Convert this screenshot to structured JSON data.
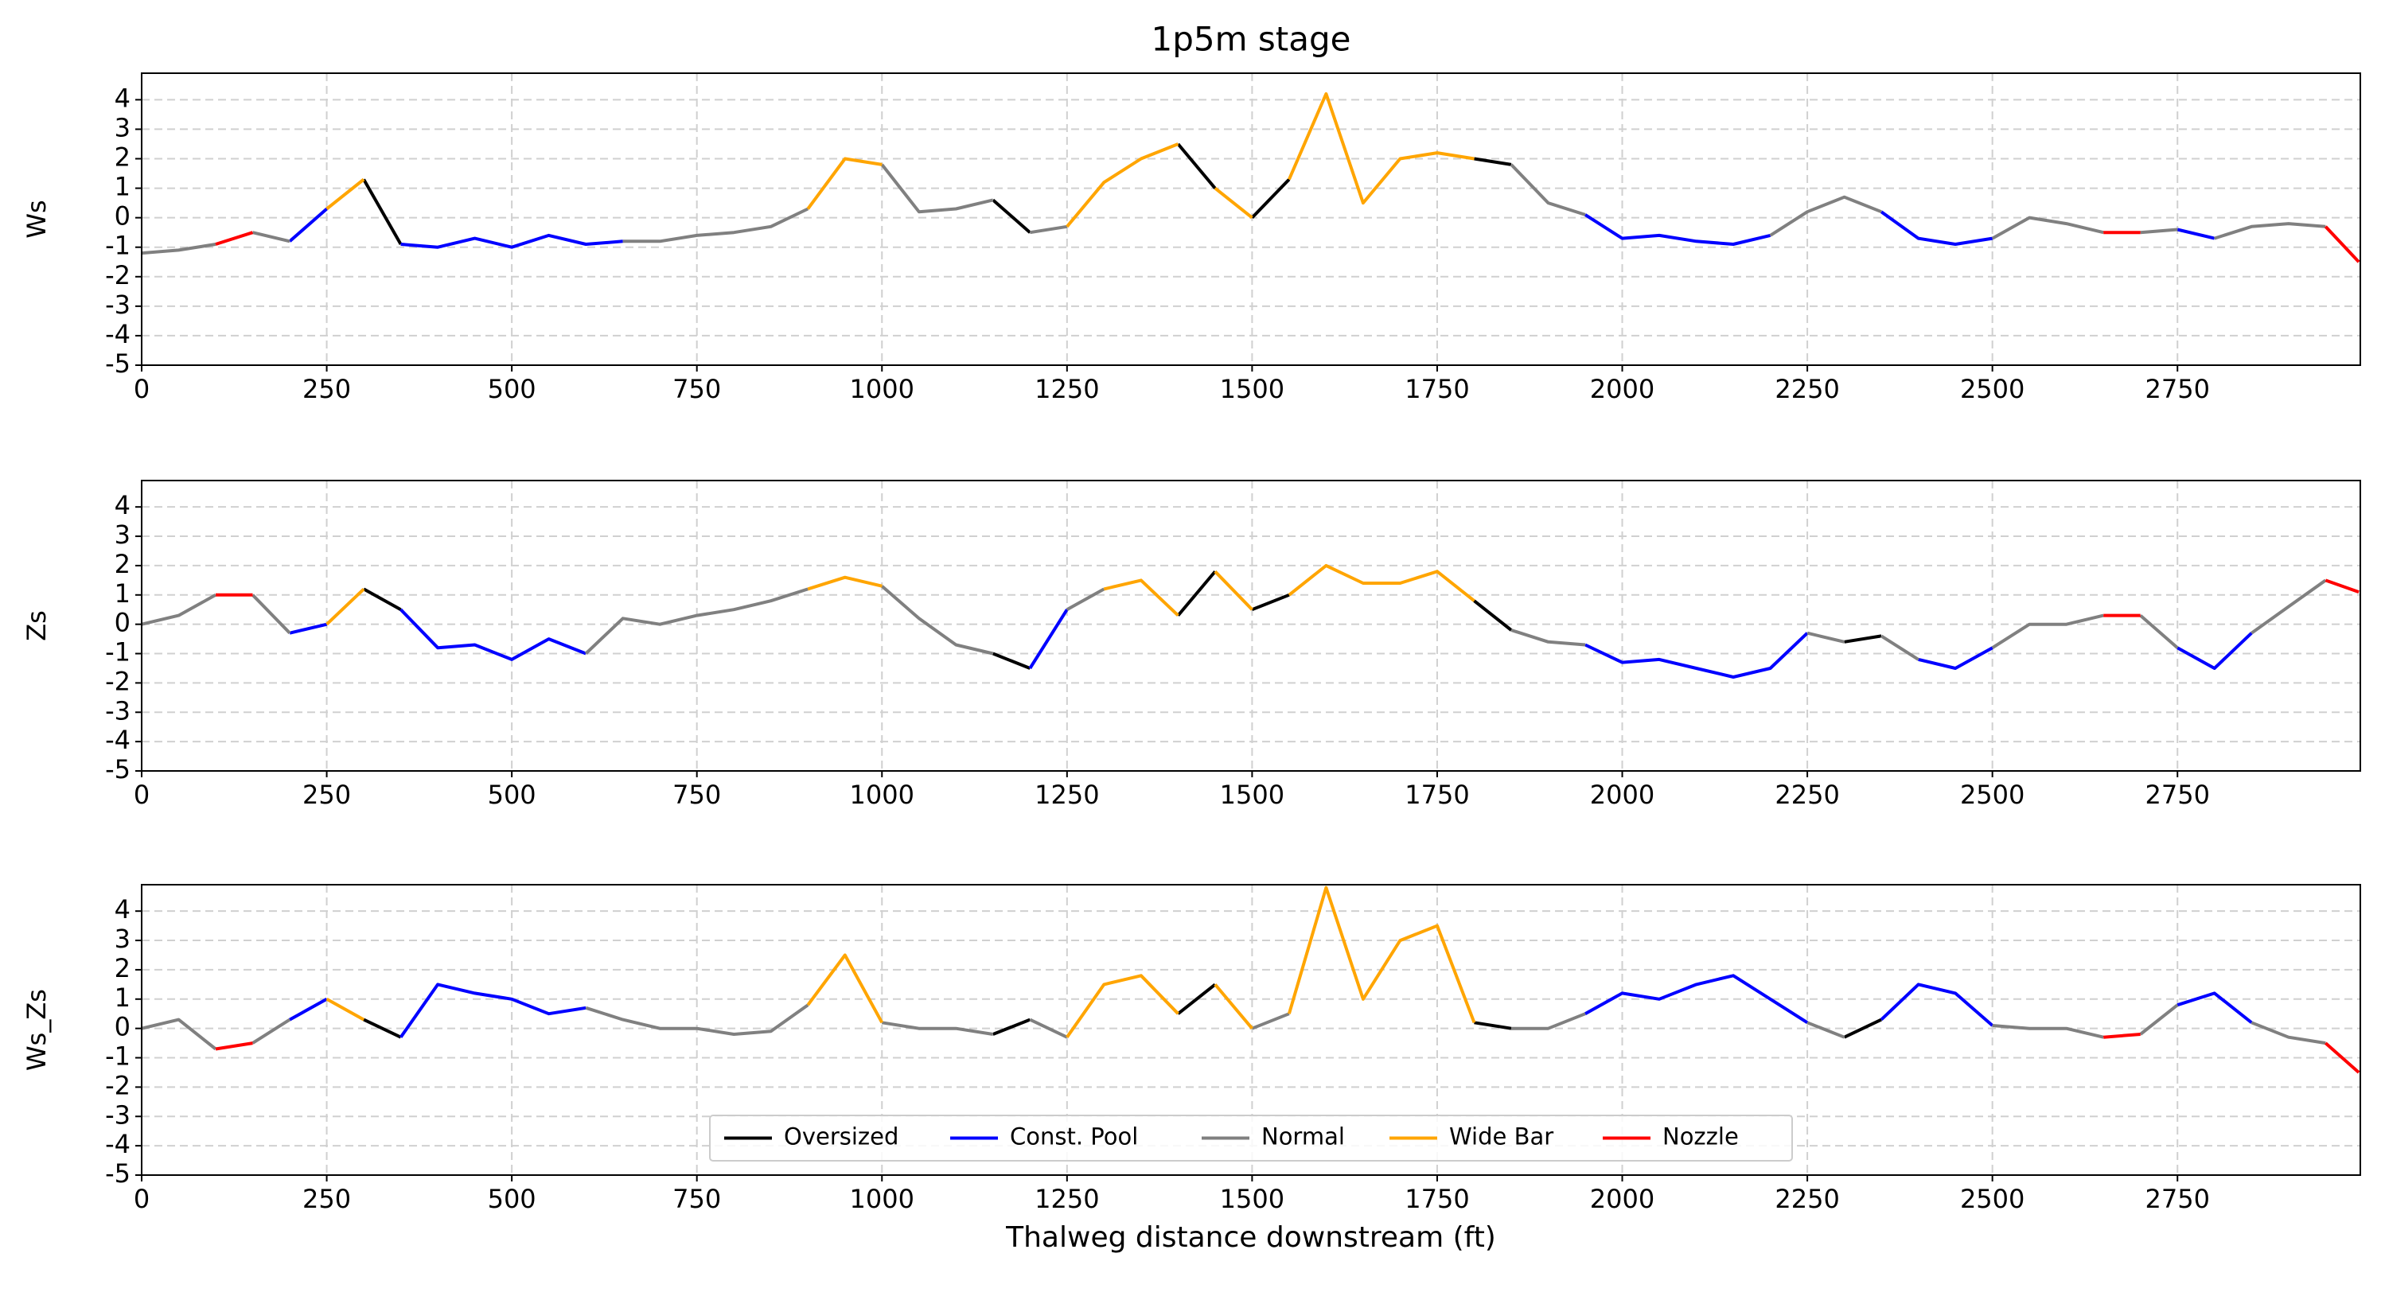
{
  "chart_data": [
    {
      "type": "line",
      "title": "1p5m stage",
      "y_label": "Ws",
      "xlim": [
        0,
        2997
      ],
      "ylim": [
        -5,
        4.9
      ],
      "xticks": [
        0,
        250,
        500,
        750,
        1000,
        1250,
        1500,
        1750,
        2000,
        2250,
        2500,
        2750
      ],
      "yticks": [
        -5,
        -4,
        -3,
        -2,
        -1,
        0,
        1,
        2,
        3,
        4
      ],
      "grid": true,
      "series": [
        {
          "color": "#000000",
          "x": [
            300,
            350,
            null,
            1150,
            1200,
            null,
            1400,
            1450,
            null,
            1500,
            1550,
            null,
            1800,
            1850
          ],
          "values": [
            1.3,
            -0.9,
            null,
            0.6,
            -0.5,
            null,
            2.5,
            1.0,
            null,
            0.0,
            1.3,
            null,
            2.0,
            1.8
          ]
        },
        {
          "color": "#0000ff",
          "x": [
            200,
            250,
            null,
            350,
            400,
            450,
            500,
            550,
            600,
            650,
            null,
            1950,
            2000,
            2050,
            2100,
            2150,
            2200,
            null,
            2350,
            2400,
            2450,
            2500,
            null,
            2750,
            2800
          ],
          "values": [
            -0.8,
            0.3,
            null,
            -0.9,
            -1.0,
            -0.7,
            -1.0,
            -0.6,
            -0.9,
            -0.8,
            null,
            0.1,
            -0.7,
            -0.6,
            -0.8,
            -0.9,
            -0.6,
            null,
            0.2,
            -0.7,
            -0.9,
            -0.7,
            null,
            -0.4,
            -0.7
          ]
        },
        {
          "color": "#808080",
          "x": [
            0,
            50,
            100,
            null,
            150,
            200,
            null,
            650,
            700,
            750,
            800,
            850,
            900,
            null,
            1000,
            1050,
            1100,
            1150,
            null,
            1200,
            1250,
            null,
            1850,
            1900,
            1950,
            null,
            2200,
            2250,
            2300,
            2350,
            null,
            2500,
            2550,
            2600,
            2650,
            null,
            2700,
            2750,
            null,
            2800,
            2850,
            2900,
            2950
          ],
          "values": [
            -1.2,
            -1.1,
            -0.9,
            null,
            -0.5,
            -0.8,
            null,
            -0.8,
            -0.8,
            -0.6,
            -0.5,
            -0.3,
            0.3,
            null,
            1.8,
            0.2,
            0.3,
            0.6,
            null,
            -0.5,
            -0.3,
            null,
            1.8,
            0.5,
            0.1,
            null,
            -0.6,
            0.2,
            0.7,
            0.2,
            null,
            -0.7,
            0.0,
            -0.2,
            -0.5,
            null,
            -0.5,
            -0.4,
            null,
            -0.7,
            -0.3,
            -0.2,
            -0.3
          ]
        },
        {
          "color": "#ffa500",
          "x": [
            250,
            300,
            null,
            900,
            950,
            1000,
            null,
            1250,
            1300,
            1350,
            1400,
            null,
            1450,
            1500,
            null,
            1550,
            1600,
            1650,
            1700,
            1750,
            1800
          ],
          "values": [
            0.3,
            1.3,
            null,
            0.3,
            2.0,
            1.8,
            null,
            -0.3,
            1.2,
            2.0,
            2.5,
            null,
            1.0,
            0.0,
            null,
            1.3,
            4.2,
            0.5,
            2.0,
            2.2,
            2.0
          ]
        },
        {
          "color": "#ff0000",
          "x": [
            100,
            150,
            null,
            2650,
            2700,
            null,
            2950,
            2995
          ],
          "values": [
            -0.9,
            -0.5,
            null,
            -0.5,
            -0.5,
            null,
            -0.3,
            -1.5
          ]
        }
      ]
    },
    {
      "type": "line",
      "y_label": "Zs",
      "xlim": [
        0,
        2997
      ],
      "ylim": [
        -5,
        4.9
      ],
      "xticks": [
        0,
        250,
        500,
        750,
        1000,
        1250,
        1500,
        1750,
        2000,
        2250,
        2500,
        2750
      ],
      "yticks": [
        -5,
        -4,
        -3,
        -2,
        -1,
        0,
        1,
        2,
        3,
        4
      ],
      "grid": true,
      "series": [
        {
          "color": "#000000",
          "x": [
            300,
            350,
            null,
            1150,
            1200,
            null,
            1400,
            1450,
            null,
            1500,
            1550,
            null,
            1800,
            1850,
            null,
            2300,
            2350
          ],
          "values": [
            1.2,
            0.5,
            null,
            -1.0,
            -1.5,
            null,
            0.3,
            1.8,
            null,
            0.5,
            1.0,
            null,
            0.8,
            -0.2,
            null,
            -0.6,
            -0.4
          ]
        },
        {
          "color": "#0000ff",
          "x": [
            200,
            250,
            null,
            350,
            400,
            450,
            500,
            550,
            600,
            null,
            1200,
            1250,
            null,
            1950,
            2000,
            2050,
            2100,
            2150,
            2200,
            2250,
            null,
            2400,
            2450,
            2500,
            null,
            2750,
            2800,
            2850
          ],
          "values": [
            -0.3,
            0.0,
            null,
            0.5,
            -0.8,
            -0.7,
            -1.2,
            -0.5,
            -1.0,
            null,
            -1.5,
            0.5,
            null,
            -0.7,
            -1.3,
            -1.2,
            -1.5,
            -1.8,
            -1.5,
            -0.3,
            null,
            -1.2,
            -1.5,
            -0.8,
            null,
            -0.8,
            -1.5,
            -0.3
          ]
        },
        {
          "color": "#808080",
          "x": [
            0,
            50,
            100,
            null,
            150,
            200,
            null,
            600,
            650,
            700,
            750,
            800,
            850,
            900,
            null,
            1000,
            1050,
            1100,
            1150,
            null,
            1250,
            1300,
            null,
            1850,
            1900,
            1950,
            null,
            2250,
            2300,
            null,
            2350,
            2400,
            null,
            2500,
            2550,
            2600,
            2650,
            null,
            2700,
            2750,
            null,
            2850,
            2900,
            2950
          ],
          "values": [
            0.0,
            0.3,
            1.0,
            null,
            1.0,
            -0.3,
            null,
            -1.0,
            0.2,
            0.0,
            0.3,
            0.5,
            0.8,
            1.2,
            null,
            1.3,
            0.2,
            -0.7,
            -1.0,
            null,
            0.5,
            1.2,
            null,
            -0.2,
            -0.6,
            -0.7,
            null,
            -0.3,
            -0.6,
            null,
            -0.4,
            -1.2,
            null,
            -0.8,
            0.0,
            0.0,
            0.3,
            null,
            0.3,
            -0.8,
            null,
            -0.3,
            0.6,
            1.5
          ]
        },
        {
          "color": "#ffa500",
          "x": [
            250,
            300,
            null,
            900,
            950,
            1000,
            null,
            1300,
            1350,
            1400,
            null,
            1450,
            1500,
            null,
            1550,
            1600,
            1650,
            1700,
            1750,
            1800
          ],
          "values": [
            0.0,
            1.2,
            null,
            1.2,
            1.6,
            1.3,
            null,
            1.2,
            1.5,
            0.3,
            null,
            1.8,
            0.5,
            null,
            1.0,
            2.0,
            1.4,
            1.4,
            1.8,
            0.8
          ]
        },
        {
          "color": "#ff0000",
          "x": [
            100,
            150,
            null,
            2650,
            2700,
            null,
            2950,
            2995
          ],
          "values": [
            1.0,
            1.0,
            null,
            0.3,
            0.3,
            null,
            1.5,
            1.1
          ]
        }
      ]
    },
    {
      "type": "line",
      "y_label": "Ws_Zs",
      "x_label": "Thalweg distance downstream (ft)",
      "xlim": [
        0,
        2997
      ],
      "ylim": [
        -5,
        4.9
      ],
      "xticks": [
        0,
        250,
        500,
        750,
        1000,
        1250,
        1500,
        1750,
        2000,
        2250,
        2500,
        2750
      ],
      "yticks": [
        -5,
        -4,
        -3,
        -2,
        -1,
        0,
        1,
        2,
        3,
        4
      ],
      "grid": true,
      "legend": "lower center",
      "series": [
        {
          "name": "Oversized",
          "color": "#000000",
          "x": [
            300,
            350,
            null,
            1150,
            1200,
            null,
            1400,
            1450,
            null,
            1800,
            1850,
            null,
            2300,
            2350
          ],
          "values": [
            0.3,
            -0.3,
            null,
            -0.2,
            0.3,
            null,
            0.5,
            1.5,
            null,
            0.2,
            0.0,
            null,
            -0.3,
            0.3
          ]
        },
        {
          "name": "Const. Pool",
          "color": "#0000ff",
          "x": [
            200,
            250,
            null,
            350,
            400,
            450,
            500,
            550,
            600,
            null,
            1950,
            2000,
            2050,
            2100,
            2150,
            2200,
            2250,
            null,
            2350,
            2400,
            2450,
            2500,
            null,
            2750,
            2800,
            2850
          ],
          "values": [
            0.3,
            1.0,
            null,
            -0.3,
            1.5,
            1.2,
            1.0,
            0.5,
            0.7,
            null,
            0.5,
            1.2,
            1.0,
            1.5,
            1.8,
            1.0,
            0.2,
            null,
            0.3,
            1.5,
            1.2,
            0.1,
            null,
            0.8,
            1.2,
            0.2
          ]
        },
        {
          "name": "Normal",
          "color": "#808080",
          "x": [
            0,
            50,
            100,
            null,
            150,
            200,
            null,
            600,
            650,
            700,
            750,
            800,
            850,
            900,
            null,
            1000,
            1050,
            1100,
            1150,
            null,
            1200,
            1250,
            null,
            1500,
            1550,
            null,
            1850,
            1900,
            1950,
            null,
            2250,
            2300,
            null,
            2500,
            2550,
            2600,
            2650,
            null,
            2700,
            2750,
            null,
            2850,
            2900,
            2950
          ],
          "values": [
            0.0,
            0.3,
            -0.7,
            null,
            -0.5,
            0.3,
            null,
            0.7,
            0.3,
            0.0,
            0.0,
            -0.2,
            -0.1,
            0.8,
            null,
            0.2,
            0.0,
            0.0,
            -0.2,
            null,
            0.3,
            -0.3,
            null,
            0.0,
            0.5,
            null,
            0.0,
            0.0,
            0.5,
            null,
            0.2,
            -0.3,
            null,
            0.1,
            0.0,
            0.0,
            -0.3,
            null,
            -0.2,
            0.8,
            null,
            0.2,
            -0.3,
            -0.5
          ]
        },
        {
          "name": "Wide Bar",
          "color": "#ffa500",
          "x": [
            250,
            300,
            null,
            900,
            950,
            1000,
            null,
            1250,
            1300,
            1350,
            1400,
            null,
            1450,
            1500,
            null,
            1550,
            1600,
            1650,
            1700,
            1750,
            1800
          ],
          "values": [
            1.0,
            0.3,
            null,
            0.8,
            2.5,
            0.2,
            null,
            -0.3,
            1.5,
            1.8,
            0.5,
            null,
            1.5,
            0.0,
            null,
            0.5,
            4.8,
            1.0,
            3.0,
            3.5,
            0.2
          ]
        },
        {
          "name": "Nozzle",
          "color": "#ff0000",
          "x": [
            100,
            150,
            null,
            2650,
            2700,
            null,
            2950,
            2995
          ],
          "values": [
            -0.7,
            -0.5,
            null,
            -0.3,
            -0.2,
            null,
            -0.5,
            -1.5
          ]
        }
      ]
    }
  ]
}
